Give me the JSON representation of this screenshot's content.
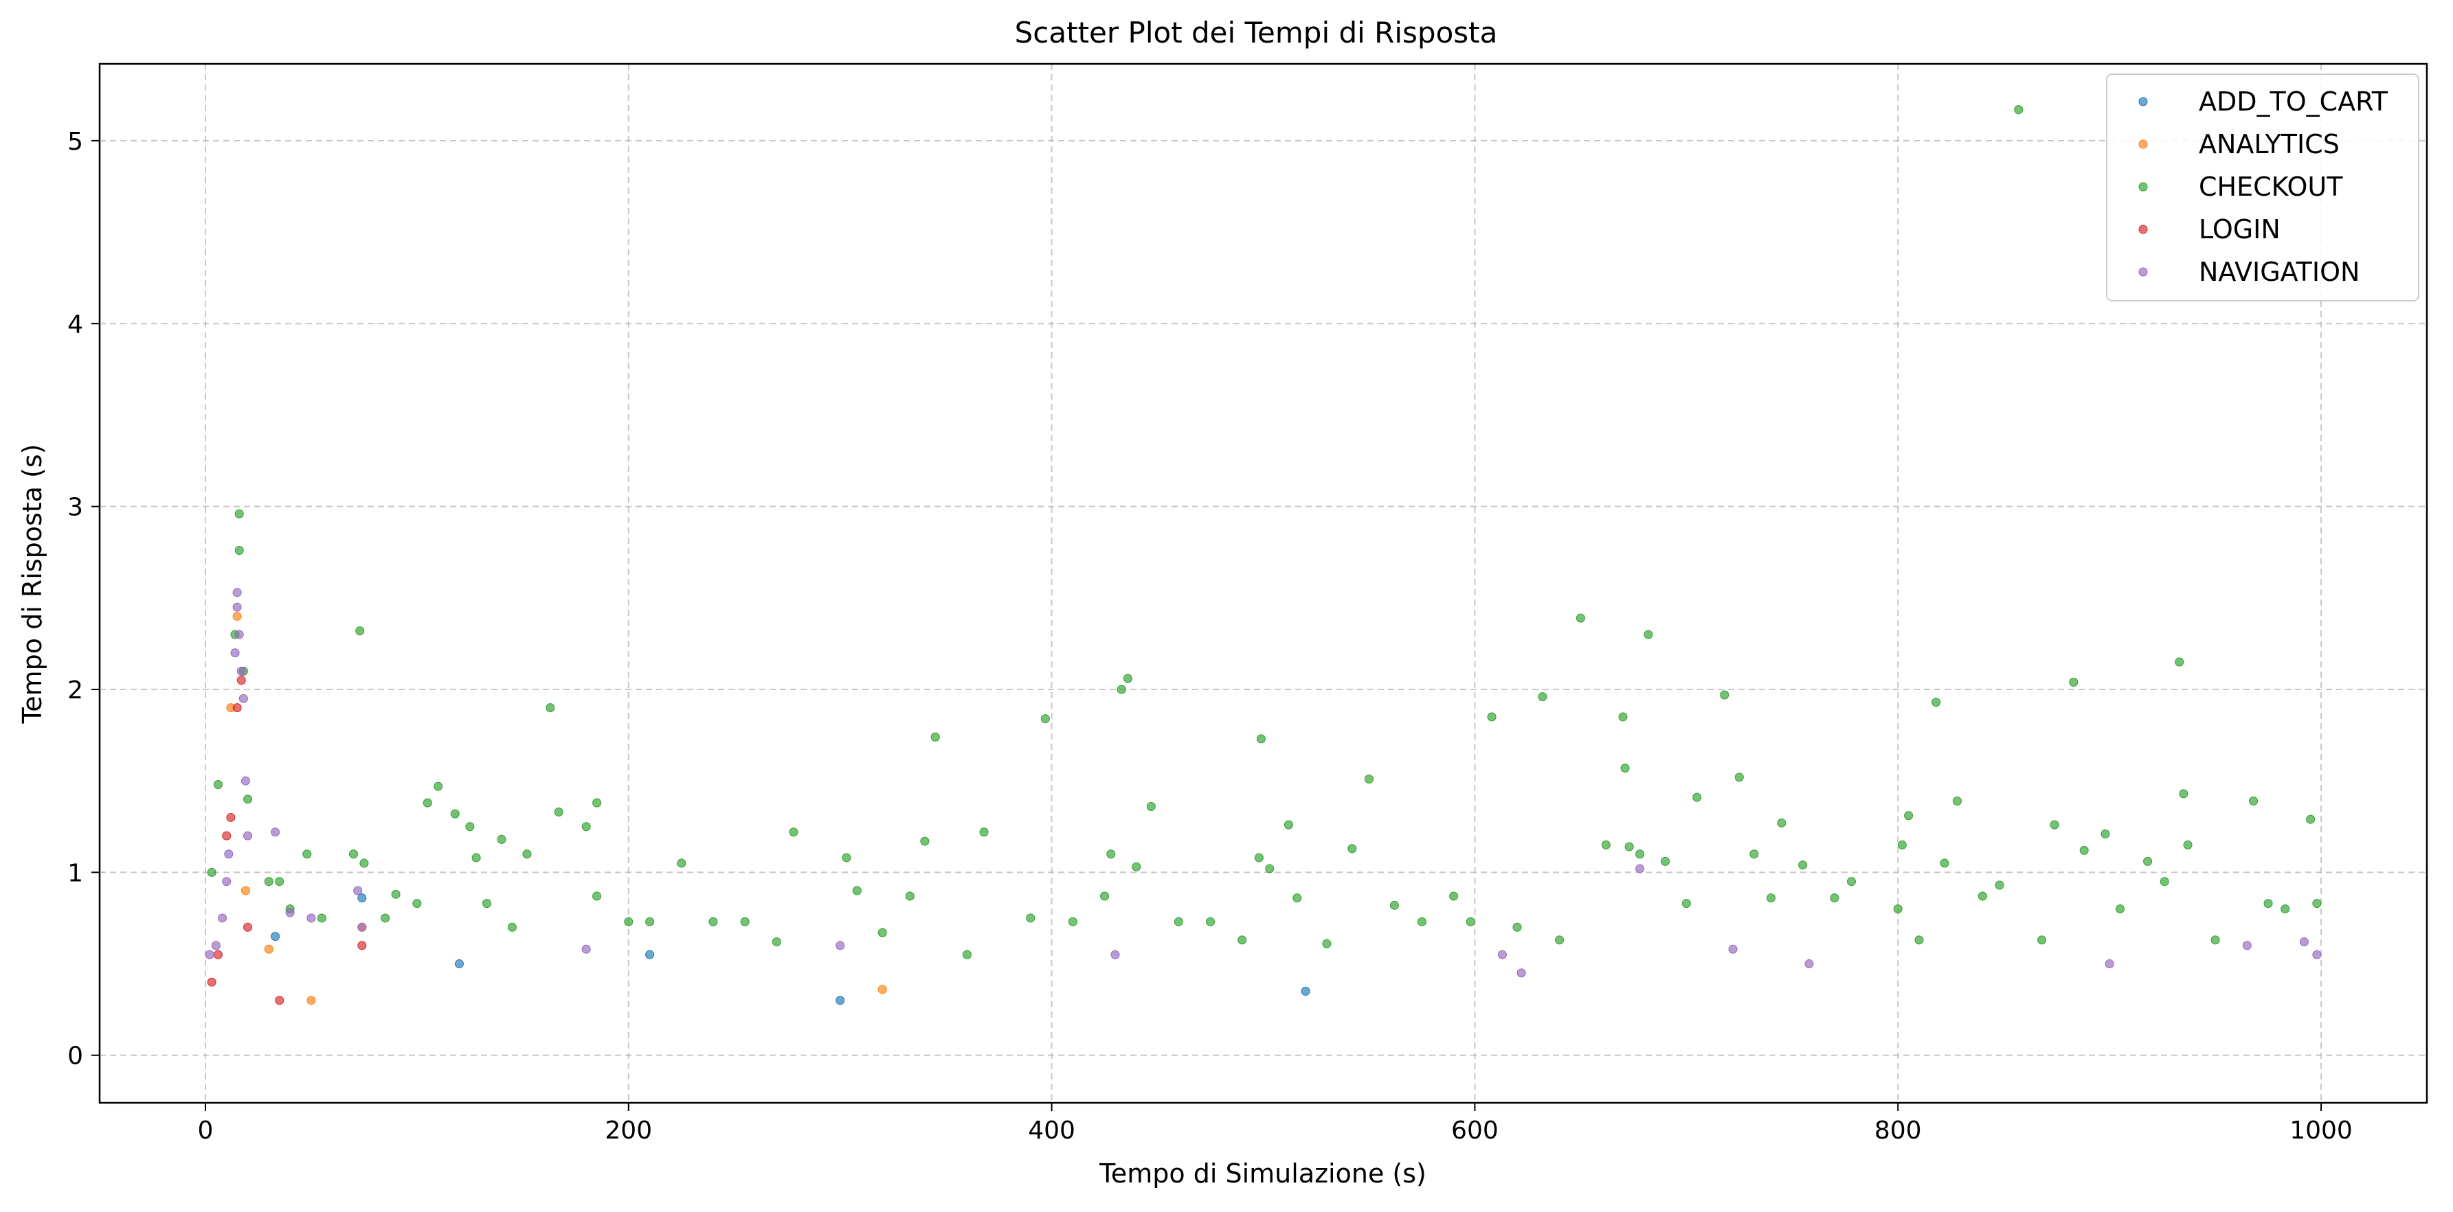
{
  "chart_data": {
    "type": "scatter",
    "title": "Scatter Plot dei Tempi di Risposta",
    "xlabel": "Tempo di Simulazione (s)",
    "ylabel": "Tempo di Risposta (s)",
    "xlim": [
      -50,
      1050
    ],
    "ylim": [
      -0.26,
      5.42
    ],
    "xticks": [
      0,
      200,
      400,
      600,
      800,
      1000
    ],
    "yticks": [
      0,
      1,
      2,
      3,
      4,
      5
    ],
    "grid": true,
    "legend_position": "top-right",
    "series": [
      {
        "name": "ADD_TO_CART",
        "color": "#1f77b4",
        "points": [
          [
            33,
            0.65
          ],
          [
            74,
            0.86
          ],
          [
            120,
            0.5
          ],
          [
            210,
            0.55
          ],
          [
            300,
            0.3
          ],
          [
            520,
            0.35
          ]
        ]
      },
      {
        "name": "ANALYTICS",
        "color": "#ff7f0e",
        "points": [
          [
            15,
            2.4
          ],
          [
            12,
            1.9
          ],
          [
            19,
            0.9
          ],
          [
            30,
            0.58
          ],
          [
            50,
            0.3
          ],
          [
            74,
            0.7
          ],
          [
            320,
            0.36
          ]
        ]
      },
      {
        "name": "CHECKOUT",
        "color": "#2ca02c",
        "points": [
          [
            3,
            1.0
          ],
          [
            6,
            1.48
          ],
          [
            16,
            2.96
          ],
          [
            16,
            2.76
          ],
          [
            14,
            2.3
          ],
          [
            18,
            2.1
          ],
          [
            20,
            1.4
          ],
          [
            30,
            0.95
          ],
          [
            35,
            0.95
          ],
          [
            40,
            0.8
          ],
          [
            48,
            1.1
          ],
          [
            55,
            0.75
          ],
          [
            70,
            1.1
          ],
          [
            73,
            2.32
          ],
          [
            75,
            1.05
          ],
          [
            85,
            0.75
          ],
          [
            90,
            0.88
          ],
          [
            100,
            0.83
          ],
          [
            105,
            1.38
          ],
          [
            110,
            1.47
          ],
          [
            118,
            1.32
          ],
          [
            125,
            1.25
          ],
          [
            128,
            1.08
          ],
          [
            133,
            0.83
          ],
          [
            140,
            1.18
          ],
          [
            145,
            0.7
          ],
          [
            152,
            1.1
          ],
          [
            163,
            1.9
          ],
          [
            167,
            1.33
          ],
          [
            180,
            1.25
          ],
          [
            185,
            1.38
          ],
          [
            185,
            0.87
          ],
          [
            200,
            0.73
          ],
          [
            210,
            0.73
          ],
          [
            225,
            1.05
          ],
          [
            240,
            0.73
          ],
          [
            255,
            0.73
          ],
          [
            270,
            0.62
          ],
          [
            278,
            1.22
          ],
          [
            303,
            1.08
          ],
          [
            308,
            0.9
          ],
          [
            320,
            0.67
          ],
          [
            333,
            0.87
          ],
          [
            340,
            1.17
          ],
          [
            345,
            1.74
          ],
          [
            360,
            0.55
          ],
          [
            368,
            1.22
          ],
          [
            390,
            0.75
          ],
          [
            397,
            1.84
          ],
          [
            410,
            0.73
          ],
          [
            425,
            0.87
          ],
          [
            428,
            1.1
          ],
          [
            433,
            2.0
          ],
          [
            436,
            2.06
          ],
          [
            440,
            1.03
          ],
          [
            447,
            1.36
          ],
          [
            460,
            0.73
          ],
          [
            475,
            0.73
          ],
          [
            490,
            0.63
          ],
          [
            498,
            1.08
          ],
          [
            499,
            1.73
          ],
          [
            503,
            1.02
          ],
          [
            512,
            1.26
          ],
          [
            516,
            0.86
          ],
          [
            530,
            0.61
          ],
          [
            542,
            1.13
          ],
          [
            550,
            1.51
          ],
          [
            562,
            0.82
          ],
          [
            575,
            0.73
          ],
          [
            590,
            0.87
          ],
          [
            598,
            0.73
          ],
          [
            608,
            1.85
          ],
          [
            620,
            0.7
          ],
          [
            632,
            1.96
          ],
          [
            640,
            0.63
          ],
          [
            650,
            2.39
          ],
          [
            662,
            1.15
          ],
          [
            670,
            1.85
          ],
          [
            671,
            1.57
          ],
          [
            673,
            1.14
          ],
          [
            678,
            1.1
          ],
          [
            682,
            2.3
          ],
          [
            690,
            1.06
          ],
          [
            700,
            0.83
          ],
          [
            705,
            1.41
          ],
          [
            718,
            1.97
          ],
          [
            725,
            1.52
          ],
          [
            732,
            1.1
          ],
          [
            740,
            0.86
          ],
          [
            745,
            1.27
          ],
          [
            755,
            1.04
          ],
          [
            770,
            0.86
          ],
          [
            778,
            0.95
          ],
          [
            800,
            0.8
          ],
          [
            802,
            1.15
          ],
          [
            805,
            1.31
          ],
          [
            810,
            0.63
          ],
          [
            818,
            1.93
          ],
          [
            822,
            1.05
          ],
          [
            828,
            1.39
          ],
          [
            840,
            0.87
          ],
          [
            848,
            0.93
          ],
          [
            857,
            5.17
          ],
          [
            868,
            0.63
          ],
          [
            874,
            1.26
          ],
          [
            883,
            2.04
          ],
          [
            888,
            1.12
          ],
          [
            898,
            1.21
          ],
          [
            905,
            0.8
          ],
          [
            918,
            1.06
          ],
          [
            926,
            0.95
          ],
          [
            933,
            2.15
          ],
          [
            935,
            1.43
          ],
          [
            937,
            1.15
          ],
          [
            950,
            0.63
          ],
          [
            968,
            1.39
          ],
          [
            975,
            0.83
          ],
          [
            983,
            0.8
          ],
          [
            995,
            1.29
          ],
          [
            998,
            0.83
          ]
        ]
      },
      {
        "name": "LOGIN",
        "color": "#d62728",
        "points": [
          [
            3,
            0.4
          ],
          [
            6,
            0.55
          ],
          [
            10,
            1.2
          ],
          [
            12,
            1.3
          ],
          [
            15,
            1.9
          ],
          [
            17,
            2.05
          ],
          [
            20,
            0.7
          ],
          [
            74,
            0.6
          ],
          [
            35,
            0.3
          ]
        ]
      },
      {
        "name": "NAVIGATION",
        "color": "#9467bd",
        "points": [
          [
            15,
            2.53
          ],
          [
            15,
            2.45
          ],
          [
            16,
            2.3
          ],
          [
            14,
            2.2
          ],
          [
            17,
            2.1
          ],
          [
            18,
            1.95
          ],
          [
            19,
            1.5
          ],
          [
            20,
            1.2
          ],
          [
            11,
            1.1
          ],
          [
            10,
            0.95
          ],
          [
            8,
            0.75
          ],
          [
            5,
            0.6
          ],
          [
            2,
            0.55
          ],
          [
            33,
            1.22
          ],
          [
            40,
            0.78
          ],
          [
            50,
            0.75
          ],
          [
            72,
            0.9
          ],
          [
            74,
            0.7
          ],
          [
            180,
            0.58
          ],
          [
            300,
            0.6
          ],
          [
            430,
            0.55
          ],
          [
            613,
            0.55
          ],
          [
            622,
            0.45
          ],
          [
            678,
            1.02
          ],
          [
            722,
            0.58
          ],
          [
            758,
            0.5
          ],
          [
            900,
            0.5
          ],
          [
            965,
            0.6
          ],
          [
            992,
            0.62
          ],
          [
            998,
            0.55
          ]
        ]
      }
    ]
  }
}
